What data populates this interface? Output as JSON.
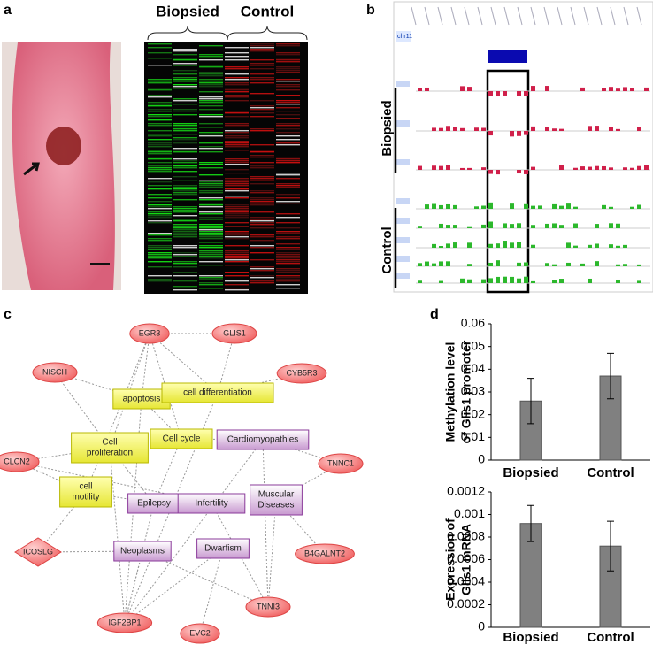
{
  "panels": {
    "a": {
      "label": "a",
      "groups": [
        "Biopsied",
        "Control"
      ]
    },
    "b": {
      "label": "b",
      "track": "chr11",
      "groups": [
        "Biopsied",
        "Control"
      ]
    },
    "c": {
      "label": "c",
      "nodes": [
        {
          "lines": [
            "EGR3"
          ],
          "kind": "gene"
        },
        {
          "lines": [
            "GLIS1"
          ],
          "kind": "gene"
        },
        {
          "lines": [
            "NISCH"
          ],
          "kind": "gene"
        },
        {
          "lines": [
            "CYB5R3"
          ],
          "kind": "gene"
        },
        {
          "lines": [
            "apoptosis"
          ],
          "kind": "function"
        },
        {
          "lines": [
            "cell differentiation"
          ],
          "kind": "function"
        },
        {
          "lines": [
            "Cell",
            "proliferation"
          ],
          "kind": "function"
        },
        {
          "lines": [
            "Cell cycle"
          ],
          "kind": "function"
        },
        {
          "lines": [
            "Cardiomyopathies"
          ],
          "kind": "disease"
        },
        {
          "lines": [
            "CLCN2"
          ],
          "kind": "gene"
        },
        {
          "lines": [
            "TNNC1"
          ],
          "kind": "gene"
        },
        {
          "lines": [
            "cell",
            "motility"
          ],
          "kind": "function"
        },
        {
          "lines": [
            "Epilepsy"
          ],
          "kind": "disease"
        },
        {
          "lines": [
            "Infertility"
          ],
          "kind": "disease"
        },
        {
          "lines": [
            "Muscular",
            "Diseases"
          ],
          "kind": "disease"
        },
        {
          "lines": [
            "ICOSLG"
          ],
          "kind": "gene"
        },
        {
          "lines": [
            "B4GALNT2"
          ],
          "kind": "gene"
        },
        {
          "lines": [
            "Neoplasms"
          ],
          "kind": "disease"
        },
        {
          "lines": [
            "Dwarfism"
          ],
          "kind": "disease"
        },
        {
          "lines": [
            "IGF2BP1"
          ],
          "kind": "gene"
        },
        {
          "lines": [
            "TNNI3"
          ],
          "kind": "gene"
        },
        {
          "lines": [
            "EVC2"
          ],
          "kind": "gene"
        }
      ]
    },
    "d": {
      "label": "d"
    }
  },
  "chart_data": [
    {
      "type": "bar",
      "ylabel": [
        "Methylation level",
        "of Glis1 promoter"
      ],
      "categories": [
        "Biopsied",
        "Control"
      ],
      "values": [
        0.026,
        0.037
      ],
      "errors": [
        0.01,
        0.01
      ],
      "color": "#808080",
      "ylim": [
        0,
        0.06
      ],
      "yticks": [
        0,
        0.01,
        0.02,
        0.03,
        0.04,
        0.05,
        0.06
      ]
    },
    {
      "type": "bar",
      "ylabel": [
        "Expression of",
        "Glis1 mRNA"
      ],
      "categories": [
        "Biopsied",
        "Control"
      ],
      "values": [
        0.00092,
        0.00072
      ],
      "errors": [
        0.00016,
        0.00022
      ],
      "color": "#808080",
      "ylim": [
        0,
        0.0012
      ],
      "yticks": [
        0,
        0.0002,
        0.0004,
        0.0006,
        0.0008,
        0.001,
        0.0012
      ]
    }
  ]
}
